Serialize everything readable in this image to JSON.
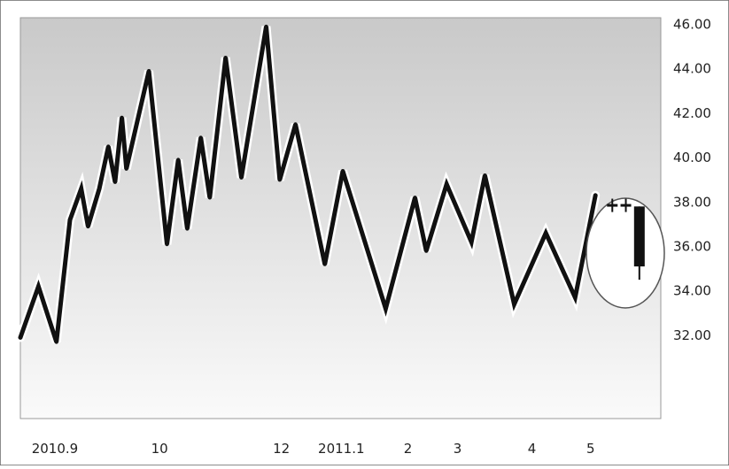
{
  "chart_data": {
    "type": "line",
    "y_ticks": [
      "46.00",
      "44.00",
      "42.00",
      "40.00",
      "38.00",
      "36.00",
      "34.00",
      "32.00"
    ],
    "x_ticks": [
      {
        "label": "2010.9",
        "x": 0.5
      },
      {
        "label": "10",
        "x": 5.8
      },
      {
        "label": "12",
        "x": 11.2
      },
      {
        "label": "2011.1",
        "x": 13.2
      },
      {
        "label": "2",
        "x": 17.0
      },
      {
        "label": "3",
        "x": 19.2
      },
      {
        "label": "4",
        "x": 22.5
      },
      {
        "label": "5",
        "x": 25.1
      }
    ],
    "ylim": [
      28.25,
      46.3
    ],
    "xlim": [
      0,
      28.4
    ],
    "grid": false,
    "series": [
      {
        "values": [
          {
            "x": 0.0,
            "y": 31.9
          },
          {
            "x": 0.8,
            "y": 34.2
          },
          {
            "x": 1.6,
            "y": 31.7
          },
          {
            "x": 2.2,
            "y": 37.2
          },
          {
            "x": 2.7,
            "y": 38.6
          },
          {
            "x": 3.0,
            "y": 36.9
          },
          {
            "x": 3.5,
            "y": 38.6
          },
          {
            "x": 3.9,
            "y": 40.5
          },
          {
            "x": 4.2,
            "y": 38.9
          },
          {
            "x": 4.5,
            "y": 41.8
          },
          {
            "x": 4.7,
            "y": 39.5
          },
          {
            "x": 5.7,
            "y": 43.9
          },
          {
            "x": 6.5,
            "y": 36.1
          },
          {
            "x": 7.0,
            "y": 39.9
          },
          {
            "x": 7.4,
            "y": 36.8
          },
          {
            "x": 8.0,
            "y": 40.9
          },
          {
            "x": 8.4,
            "y": 38.2
          },
          {
            "x": 9.1,
            "y": 44.5
          },
          {
            "x": 9.8,
            "y": 39.1
          },
          {
            "x": 10.9,
            "y": 45.9
          },
          {
            "x": 11.5,
            "y": 39.0
          },
          {
            "x": 12.2,
            "y": 41.5
          },
          {
            "x": 13.5,
            "y": 35.2
          },
          {
            "x": 14.3,
            "y": 39.4
          },
          {
            "x": 16.2,
            "y": 33.2
          },
          {
            "x": 17.5,
            "y": 38.2
          },
          {
            "x": 18.0,
            "y": 35.8
          },
          {
            "x": 18.9,
            "y": 38.8
          },
          {
            "x": 20.0,
            "y": 36.2
          },
          {
            "x": 20.6,
            "y": 39.2
          },
          {
            "x": 21.9,
            "y": 33.4
          },
          {
            "x": 23.3,
            "y": 36.6
          },
          {
            "x": 24.6,
            "y": 33.7
          },
          {
            "x": 25.5,
            "y": 38.3
          }
        ]
      }
    ],
    "candlesticks": [
      {
        "x": 26.25,
        "open": 37.85,
        "close": 37.85,
        "high": 38.15,
        "low": 37.55
      },
      {
        "x": 26.85,
        "open": 37.85,
        "close": 37.85,
        "high": 38.15,
        "low": 37.55
      },
      {
        "x": 27.45,
        "open": 37.8,
        "close": 35.1,
        "high": 37.8,
        "low": 34.5
      }
    ]
  }
}
